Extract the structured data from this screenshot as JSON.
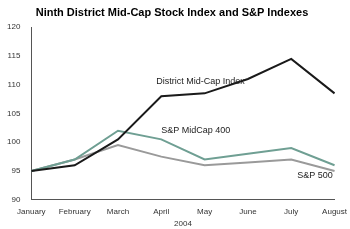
{
  "chart_data": {
    "type": "line",
    "title": "Ninth District Mid-Cap Stock Index and S&P Indexes",
    "x_label": "2004",
    "categories": [
      "January",
      "February",
      "March",
      "April",
      "May",
      "June",
      "July",
      "August"
    ],
    "series": [
      {
        "name": "District Mid-Cap Index",
        "color": "#1a1a1a",
        "values": [
          95,
          96,
          100.5,
          108,
          108.5,
          111,
          114.5,
          108.5
        ]
      },
      {
        "name": "S&P MidCap 400",
        "color": "#6f9f93",
        "values": [
          95,
          97,
          102,
          100.5,
          97,
          98,
          99,
          96
        ]
      },
      {
        "name": "S&P 500",
        "color": "#9a9a9a",
        "values": [
          95,
          97,
          99.5,
          97.5,
          96,
          96.5,
          97,
          95
        ]
      }
    ],
    "ylim": [
      90,
      120
    ],
    "yticks": [
      90,
      95,
      100,
      105,
      110,
      115,
      120
    ],
    "grid": false
  }
}
